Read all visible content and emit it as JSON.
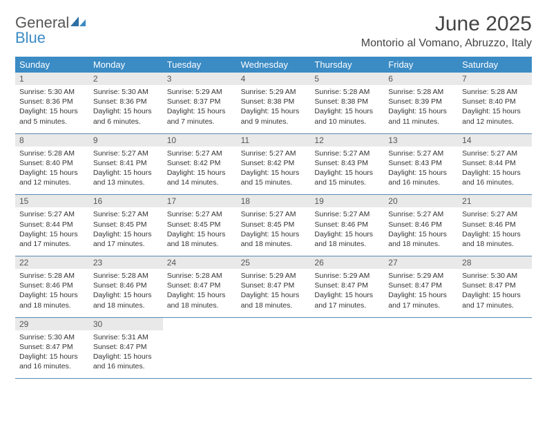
{
  "brand": {
    "general": "General",
    "blue": "Blue"
  },
  "title": "June 2025",
  "location": "Montorio al Vomano, Abruzzo, Italy",
  "colors": {
    "header_bg": "#3b8bc4",
    "daynum_bg": "#e9e9e9",
    "rule": "#5a89b0"
  },
  "dayNames": [
    "Sunday",
    "Monday",
    "Tuesday",
    "Wednesday",
    "Thursday",
    "Friday",
    "Saturday"
  ],
  "weeks": [
    [
      {
        "n": "1",
        "sr": "Sunrise: 5:30 AM",
        "ss": "Sunset: 8:36 PM",
        "d1": "Daylight: 15 hours",
        "d2": "and 5 minutes."
      },
      {
        "n": "2",
        "sr": "Sunrise: 5:30 AM",
        "ss": "Sunset: 8:36 PM",
        "d1": "Daylight: 15 hours",
        "d2": "and 6 minutes."
      },
      {
        "n": "3",
        "sr": "Sunrise: 5:29 AM",
        "ss": "Sunset: 8:37 PM",
        "d1": "Daylight: 15 hours",
        "d2": "and 7 minutes."
      },
      {
        "n": "4",
        "sr": "Sunrise: 5:29 AM",
        "ss": "Sunset: 8:38 PM",
        "d1": "Daylight: 15 hours",
        "d2": "and 9 minutes."
      },
      {
        "n": "5",
        "sr": "Sunrise: 5:28 AM",
        "ss": "Sunset: 8:38 PM",
        "d1": "Daylight: 15 hours",
        "d2": "and 10 minutes."
      },
      {
        "n": "6",
        "sr": "Sunrise: 5:28 AM",
        "ss": "Sunset: 8:39 PM",
        "d1": "Daylight: 15 hours",
        "d2": "and 11 minutes."
      },
      {
        "n": "7",
        "sr": "Sunrise: 5:28 AM",
        "ss": "Sunset: 8:40 PM",
        "d1": "Daylight: 15 hours",
        "d2": "and 12 minutes."
      }
    ],
    [
      {
        "n": "8",
        "sr": "Sunrise: 5:28 AM",
        "ss": "Sunset: 8:40 PM",
        "d1": "Daylight: 15 hours",
        "d2": "and 12 minutes."
      },
      {
        "n": "9",
        "sr": "Sunrise: 5:27 AM",
        "ss": "Sunset: 8:41 PM",
        "d1": "Daylight: 15 hours",
        "d2": "and 13 minutes."
      },
      {
        "n": "10",
        "sr": "Sunrise: 5:27 AM",
        "ss": "Sunset: 8:42 PM",
        "d1": "Daylight: 15 hours",
        "d2": "and 14 minutes."
      },
      {
        "n": "11",
        "sr": "Sunrise: 5:27 AM",
        "ss": "Sunset: 8:42 PM",
        "d1": "Daylight: 15 hours",
        "d2": "and 15 minutes."
      },
      {
        "n": "12",
        "sr": "Sunrise: 5:27 AM",
        "ss": "Sunset: 8:43 PM",
        "d1": "Daylight: 15 hours",
        "d2": "and 15 minutes."
      },
      {
        "n": "13",
        "sr": "Sunrise: 5:27 AM",
        "ss": "Sunset: 8:43 PM",
        "d1": "Daylight: 15 hours",
        "d2": "and 16 minutes."
      },
      {
        "n": "14",
        "sr": "Sunrise: 5:27 AM",
        "ss": "Sunset: 8:44 PM",
        "d1": "Daylight: 15 hours",
        "d2": "and 16 minutes."
      }
    ],
    [
      {
        "n": "15",
        "sr": "Sunrise: 5:27 AM",
        "ss": "Sunset: 8:44 PM",
        "d1": "Daylight: 15 hours",
        "d2": "and 17 minutes."
      },
      {
        "n": "16",
        "sr": "Sunrise: 5:27 AM",
        "ss": "Sunset: 8:45 PM",
        "d1": "Daylight: 15 hours",
        "d2": "and 17 minutes."
      },
      {
        "n": "17",
        "sr": "Sunrise: 5:27 AM",
        "ss": "Sunset: 8:45 PM",
        "d1": "Daylight: 15 hours",
        "d2": "and 18 minutes."
      },
      {
        "n": "18",
        "sr": "Sunrise: 5:27 AM",
        "ss": "Sunset: 8:45 PM",
        "d1": "Daylight: 15 hours",
        "d2": "and 18 minutes."
      },
      {
        "n": "19",
        "sr": "Sunrise: 5:27 AM",
        "ss": "Sunset: 8:46 PM",
        "d1": "Daylight: 15 hours",
        "d2": "and 18 minutes."
      },
      {
        "n": "20",
        "sr": "Sunrise: 5:27 AM",
        "ss": "Sunset: 8:46 PM",
        "d1": "Daylight: 15 hours",
        "d2": "and 18 minutes."
      },
      {
        "n": "21",
        "sr": "Sunrise: 5:27 AM",
        "ss": "Sunset: 8:46 PM",
        "d1": "Daylight: 15 hours",
        "d2": "and 18 minutes."
      }
    ],
    [
      {
        "n": "22",
        "sr": "Sunrise: 5:28 AM",
        "ss": "Sunset: 8:46 PM",
        "d1": "Daylight: 15 hours",
        "d2": "and 18 minutes."
      },
      {
        "n": "23",
        "sr": "Sunrise: 5:28 AM",
        "ss": "Sunset: 8:46 PM",
        "d1": "Daylight: 15 hours",
        "d2": "and 18 minutes."
      },
      {
        "n": "24",
        "sr": "Sunrise: 5:28 AM",
        "ss": "Sunset: 8:47 PM",
        "d1": "Daylight: 15 hours",
        "d2": "and 18 minutes."
      },
      {
        "n": "25",
        "sr": "Sunrise: 5:29 AM",
        "ss": "Sunset: 8:47 PM",
        "d1": "Daylight: 15 hours",
        "d2": "and 18 minutes."
      },
      {
        "n": "26",
        "sr": "Sunrise: 5:29 AM",
        "ss": "Sunset: 8:47 PM",
        "d1": "Daylight: 15 hours",
        "d2": "and 17 minutes."
      },
      {
        "n": "27",
        "sr": "Sunrise: 5:29 AM",
        "ss": "Sunset: 8:47 PM",
        "d1": "Daylight: 15 hours",
        "d2": "and 17 minutes."
      },
      {
        "n": "28",
        "sr": "Sunrise: 5:30 AM",
        "ss": "Sunset: 8:47 PM",
        "d1": "Daylight: 15 hours",
        "d2": "and 17 minutes."
      }
    ],
    [
      {
        "n": "29",
        "sr": "Sunrise: 5:30 AM",
        "ss": "Sunset: 8:47 PM",
        "d1": "Daylight: 15 hours",
        "d2": "and 16 minutes."
      },
      {
        "n": "30",
        "sr": "Sunrise: 5:31 AM",
        "ss": "Sunset: 8:47 PM",
        "d1": "Daylight: 15 hours",
        "d2": "and 16 minutes."
      },
      null,
      null,
      null,
      null,
      null
    ]
  ]
}
